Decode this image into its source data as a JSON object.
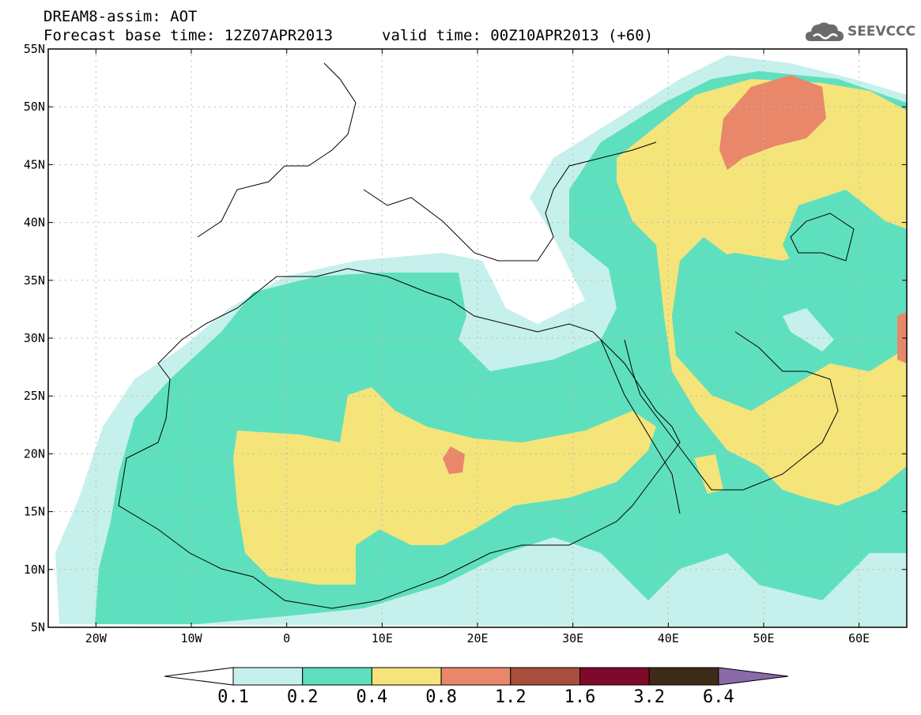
{
  "header": {
    "line1": "DREAM8-assim: AOT",
    "line2_left": "Forecast base time: 12Z07APR2013",
    "line2_right": "valid time: 00Z10APR2013 (+60)",
    "logo_text": "SEEVCCC"
  },
  "map": {
    "lat_labels": [
      "55N",
      "50N",
      "45N",
      "40N",
      "35N",
      "30N",
      "25N",
      "20N",
      "15N",
      "10N",
      "5N"
    ],
    "lon_labels": [
      "20W",
      "10W",
      "0",
      "10E",
      "20E",
      "30E",
      "40E",
      "50E",
      "60E"
    ],
    "lat_range": [
      5,
      55
    ],
    "lon_range": [
      -25,
      65
    ],
    "field": "AOT"
  },
  "legend": {
    "labels": [
      "0.1",
      "0.2",
      "0.4",
      "0.8",
      "1.2",
      "1.6",
      "3.2",
      "6.4"
    ],
    "colors": [
      "#c6f0ec",
      "#5ee0be",
      "#f4e47a",
      "#e9876a",
      "#a84e3c",
      "#7d0a2a",
      "#3e2a18",
      "#8a6aa8"
    ],
    "under_color": "#ffffff"
  }
}
